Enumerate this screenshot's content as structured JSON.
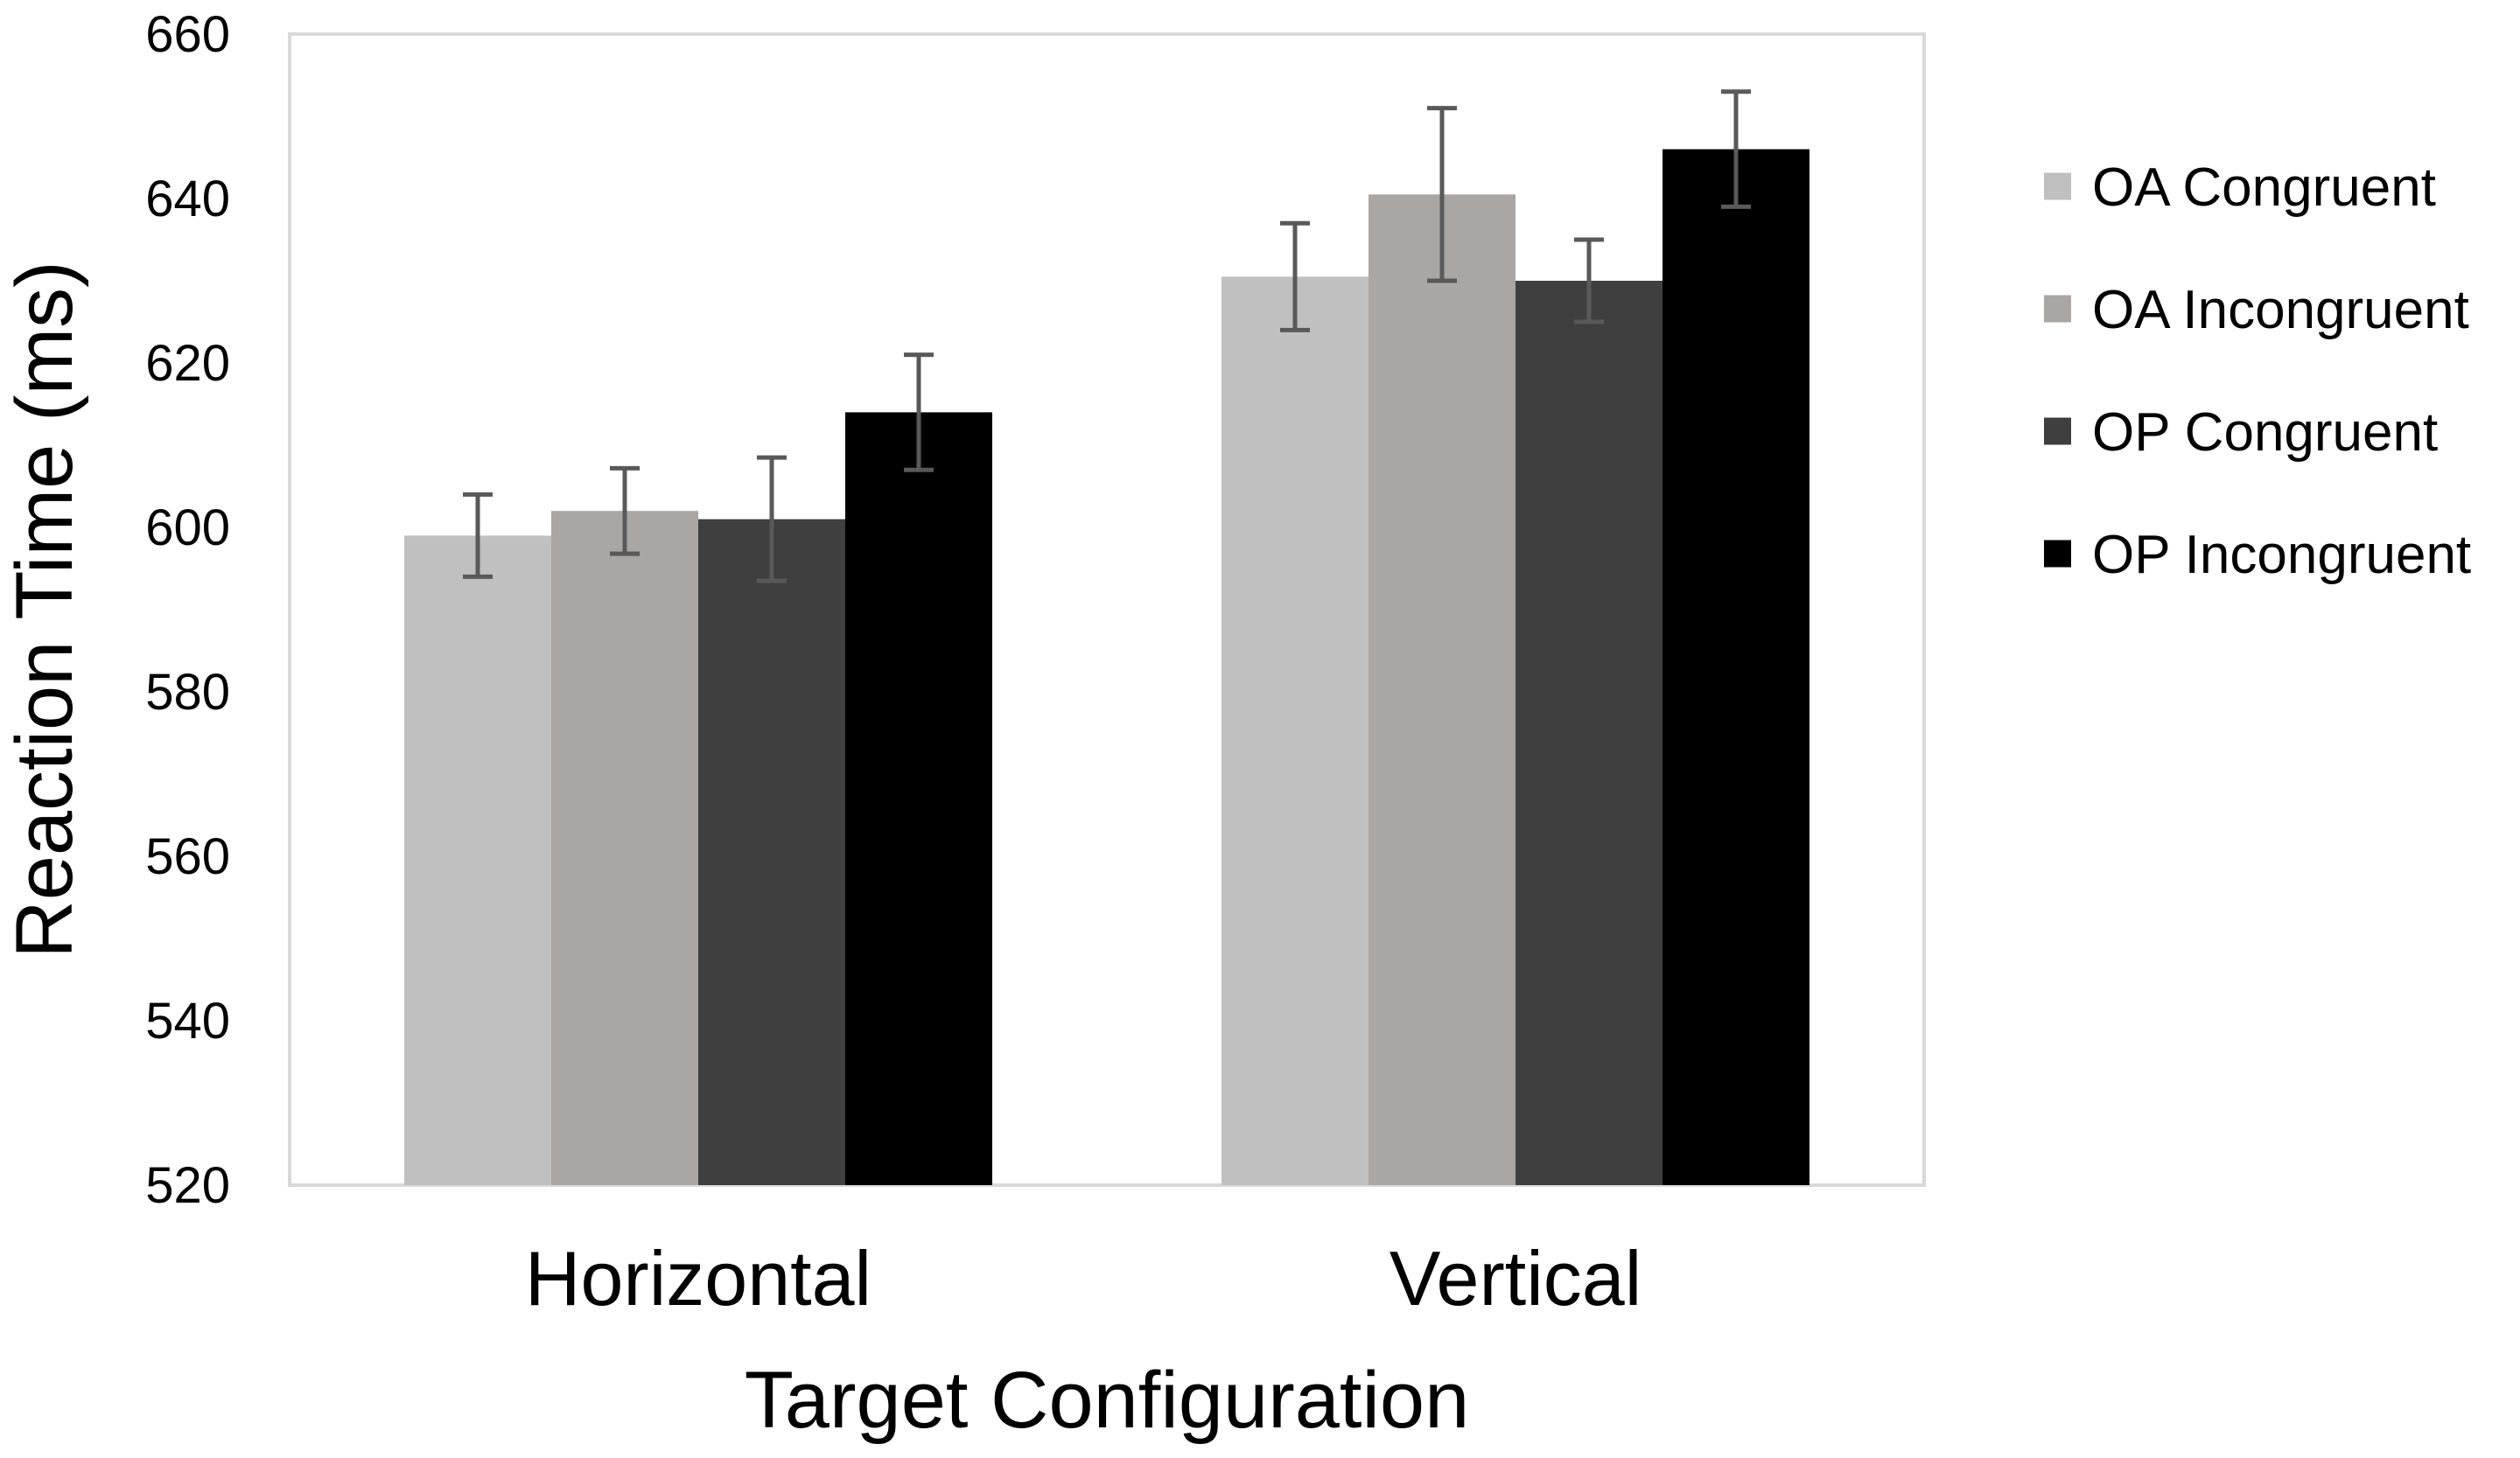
{
  "chart_data": {
    "type": "bar",
    "title": "",
    "xlabel": "Target Configuration",
    "ylabel": "Reaction Time (ms)",
    "ylim": [
      520,
      660
    ],
    "yticks": [
      520,
      540,
      560,
      580,
      600,
      620,
      640,
      660
    ],
    "ytick_labels": [
      "520",
      "540",
      "560",
      "580",
      "600",
      "620",
      "640",
      "660"
    ],
    "grid": false,
    "legend_position": "right",
    "categories": [
      "Horizontal",
      "Vertical"
    ],
    "series": [
      {
        "name": "OA Congruent",
        "color": "#c0c0c0",
        "values": [
          599,
          630.5
        ],
        "error": [
          5,
          6.5
        ]
      },
      {
        "name": "OA Incongruent",
        "color": "#a9a6a3",
        "values": [
          602,
          640.5
        ],
        "error": [
          5.2,
          10.5
        ]
      },
      {
        "name": "OP Congruent",
        "color": "#3f3f3f",
        "values": [
          601,
          630
        ],
        "error": [
          7.5,
          5
        ]
      },
      {
        "name": "OP Incongruent",
        "color": "#000000",
        "values": [
          614,
          646
        ],
        "error": [
          7,
          7
        ]
      }
    ],
    "errorbar_color": "#595959",
    "plot_border_color": "#d9d9d9"
  }
}
